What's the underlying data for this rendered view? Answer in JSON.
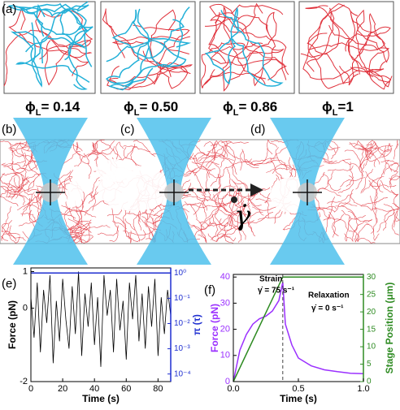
{
  "figure": {
    "panel_labels": [
      "(a)",
      "(b)",
      "(c)",
      "(d)"
    ],
    "phi_labels": [
      {
        "symbol": "ϕ",
        "subscript": "L",
        "text": "= 0.14"
      },
      {
        "symbol": "ϕ",
        "subscript": "L",
        "text": "= 0.50"
      },
      {
        "symbol": "ϕ",
        "subscript": "L",
        "text": "= 0.86"
      },
      {
        "symbol": "ϕ",
        "subscript": "L",
        "text": "=1"
      }
    ],
    "rate_symbol": "γ̇"
  },
  "chart_data": [
    {
      "type": "line",
      "panel_label": "(e)",
      "xlabel": "Time (s)",
      "ylabel": "Force (pN)",
      "y2label": "π (τ)",
      "ylabel_color": "#000000",
      "y2label_color": "#1f2fd0",
      "xlim": [
        0,
        88
      ],
      "xticks": [
        0,
        20,
        40,
        60,
        80
      ],
      "ylim": [
        -2,
        1.1
      ],
      "yticks": [
        -2,
        0,
        1
      ],
      "y2lim": [
        5e-05,
        1.6
      ],
      "y2log": true,
      "y2ticks": [
        {
          "value": 1,
          "label": "10⁰"
        },
        {
          "value": 0.1,
          "label": "10⁻¹"
        },
        {
          "value": 0.01,
          "label": "10⁻²"
        },
        {
          "value": 0.001,
          "label": "10⁻³"
        },
        {
          "value": 0.0001,
          "label": "10⁻⁴"
        }
      ],
      "series": [
        {
          "name": "Force",
          "color": "#000000",
          "x": [
            0,
            2,
            4,
            6,
            8,
            10,
            12,
            14,
            16,
            18,
            20,
            22,
            24,
            26,
            28,
            30,
            32,
            34,
            36,
            38,
            40,
            42,
            44,
            46,
            48,
            50,
            52,
            54,
            56,
            58,
            60,
            62,
            64,
            66,
            68,
            70,
            72,
            74,
            76,
            78,
            80,
            82,
            84,
            86,
            88
          ],
          "values": [
            0.3,
            -0.8,
            0.7,
            -1.2,
            0.5,
            -0.4,
            0.9,
            -1.5,
            0.2,
            -0.9,
            0.8,
            -0.3,
            -1.1,
            0.6,
            -0.7,
            1.0,
            -1.3,
            0.4,
            -0.5,
            0.7,
            -1.0,
            0.3,
            -1.6,
            0.9,
            -0.2,
            0.5,
            -1.2,
            0.8,
            -0.6,
            0.2,
            -1.4,
            0.7,
            -0.3,
            0.9,
            -0.9,
            0.4,
            -1.1,
            0.6,
            -0.5,
            0.8,
            -1.3,
            0.3,
            -0.7,
            0.5,
            -0.2
          ]
        },
        {
          "name": "π (τ)",
          "color": "#1f2fd0",
          "axis": "y2",
          "x": [
            0,
            88
          ],
          "values": [
            1,
            1
          ]
        }
      ]
    },
    {
      "type": "line",
      "panel_label": "(f)",
      "xlabel": "Time (s)",
      "ylabel": "Force (pN)",
      "y2label": "Stage Position (μm)",
      "ylabel_color": "#9b30ff",
      "y2label_color": "#2e8b22",
      "xlim": [
        0,
        1
      ],
      "xticks": [
        {
          "value": 0,
          "label": "0.0"
        },
        {
          "value": 0.5,
          "label": "0.5"
        },
        {
          "value": 1,
          "label": "1.0"
        }
      ],
      "ylim": [
        0,
        41
      ],
      "yticks": [
        0,
        10,
        20,
        30,
        40
      ],
      "y2lim": [
        0,
        30.75
      ],
      "y2ticks": [
        0,
        5,
        10,
        15,
        20,
        25,
        30
      ],
      "vlines": [
        0.38
      ],
      "annotations": [
        "Strain",
        "γ̇ = 75 s⁻¹",
        "Relaxation",
        "γ̇ = 0 s⁻¹"
      ],
      "series": [
        {
          "name": "Force",
          "color": "#9b30ff",
          "x": [
            0,
            0.05,
            0.1,
            0.15,
            0.2,
            0.25,
            0.3,
            0.35,
            0.38,
            0.4,
            0.45,
            0.5,
            0.6,
            0.7,
            0.8,
            0.9,
            1.0
          ],
          "values": [
            0,
            12,
            18,
            22,
            24,
            25,
            27,
            31,
            38,
            22,
            14,
            9,
            6,
            4.5,
            3.8,
            3.2,
            3
          ]
        },
        {
          "name": "Stage Position",
          "color": "#2e8b22",
          "axis": "y2",
          "x": [
            0,
            0.38,
            1.0
          ],
          "values": [
            0,
            30,
            30
          ]
        }
      ]
    }
  ]
}
